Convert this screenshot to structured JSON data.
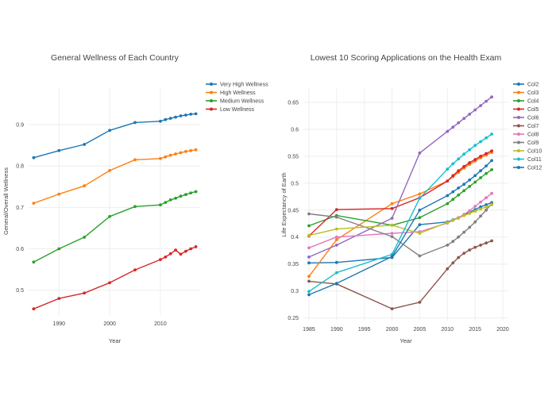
{
  "chart_data": [
    {
      "type": "line",
      "title": "General Wellness of Each Country",
      "xlabel": "Year",
      "ylabel": "General/Overall Wellness",
      "xlim": [
        1984,
        2018
      ],
      "ylim": [
        0.44,
        0.99
      ],
      "xticks": [
        1990,
        2000,
        2010
      ],
      "yticks": [
        0.5,
        0.6,
        0.7,
        0.8,
        0.9
      ],
      "legend_position": "top-right",
      "x": [
        1985,
        1990,
        1995,
        2000,
        2005,
        2010,
        2011,
        2012,
        2013,
        2014,
        2015,
        2016,
        2017
      ],
      "series": [
        {
          "name": "Very High Wellness",
          "color": "#1f77b4",
          "values": [
            0.82,
            0.837,
            0.852,
            0.886,
            0.905,
            0.908,
            0.912,
            0.915,
            0.918,
            0.921,
            0.923,
            0.925,
            0.926
          ]
        },
        {
          "name": "High Wellness",
          "color": "#ff7f0e",
          "values": [
            0.71,
            0.732,
            0.752,
            0.789,
            0.815,
            0.818,
            0.822,
            0.826,
            0.829,
            0.832,
            0.835,
            0.837,
            0.839
          ]
        },
        {
          "name": "Medium Wellness",
          "color": "#2ca02c",
          "values": [
            0.568,
            0.6,
            0.628,
            0.678,
            0.702,
            0.706,
            0.712,
            0.718,
            0.722,
            0.727,
            0.731,
            0.735,
            0.738
          ]
        },
        {
          "name": "Low Wellness",
          "color": "#d62728",
          "values": [
            0.455,
            0.48,
            0.493,
            0.518,
            0.549,
            0.574,
            0.58,
            0.588,
            0.597,
            0.587,
            0.594,
            0.6,
            0.605
          ]
        }
      ]
    },
    {
      "type": "line",
      "title": "Lowest 10 Scoring Applications on the Health Exam",
      "xlabel": "Year",
      "ylabel": "Life Expectancy of Earth",
      "xlim": [
        1984,
        2021
      ],
      "ylim": [
        0.245,
        0.675
      ],
      "xticks": [
        1985,
        1990,
        1995,
        2000,
        2005,
        2010,
        2015,
        2020
      ],
      "yticks": [
        0.25,
        0.3,
        0.35,
        0.4,
        0.45,
        0.5,
        0.55,
        0.6,
        0.65
      ],
      "legend_position": "top-right",
      "x": [
        1985,
        1990,
        2000,
        2005,
        2010,
        2011,
        2012,
        2013,
        2014,
        2015,
        2016,
        2017,
        2018
      ],
      "series": [
        {
          "name": "Col2",
          "color": "#1f77b4",
          "values": [
            0.352,
            0.353,
            0.362,
            0.423,
            0.428,
            0.432,
            0.436,
            0.441,
            0.446,
            0.451,
            0.456,
            0.46,
            0.464
          ]
        },
        {
          "name": "Col3",
          "color": "#ff7f0e",
          "values": [
            0.327,
            0.395,
            0.462,
            0.48,
            0.504,
            0.512,
            0.52,
            0.528,
            0.535,
            0.541,
            0.547,
            0.552,
            0.557
          ]
        },
        {
          "name": "Col4",
          "color": "#2ca02c",
          "values": [
            0.421,
            0.44,
            0.422,
            0.436,
            0.462,
            0.47,
            0.478,
            0.486,
            0.494,
            0.502,
            0.51,
            0.518,
            0.525
          ]
        },
        {
          "name": "Col5",
          "color": "#d62728",
          "values": [
            0.402,
            0.451,
            0.453,
            0.473,
            0.504,
            0.514,
            0.523,
            0.531,
            0.538,
            0.544,
            0.55,
            0.555,
            0.56
          ]
        },
        {
          "name": "Col6",
          "color": "#9467bd",
          "values": [
            0.363,
            0.385,
            0.435,
            0.556,
            0.596,
            0.604,
            0.612,
            0.62,
            0.628,
            0.636,
            0.644,
            0.652,
            0.66
          ]
        },
        {
          "name": "Col7",
          "color": "#8c564b",
          "values": [
            0.318,
            0.313,
            0.267,
            0.279,
            0.341,
            0.352,
            0.362,
            0.37,
            0.376,
            0.381,
            0.385,
            0.389,
            0.393
          ]
        },
        {
          "name": "Col8",
          "color": "#e377c2",
          "values": [
            0.38,
            0.4,
            0.407,
            0.41,
            0.426,
            0.431,
            0.436,
            0.442,
            0.449,
            0.457,
            0.465,
            0.473,
            0.481
          ]
        },
        {
          "name": "Col9",
          "color": "#7f7f7f",
          "values": [
            0.443,
            0.437,
            0.401,
            0.365,
            0.385,
            0.392,
            0.4,
            0.409,
            0.418,
            0.428,
            0.439,
            0.45,
            0.462
          ]
        },
        {
          "name": "Col10",
          "color": "#bcbd22",
          "values": [
            0.403,
            0.415,
            0.422,
            0.407,
            0.427,
            0.431,
            0.435,
            0.44,
            0.444,
            0.448,
            0.452,
            0.456,
            0.46
          ]
        },
        {
          "name": "Col11",
          "color": "#17becf",
          "values": [
            0.299,
            0.334,
            0.368,
            0.472,
            0.526,
            0.536,
            0.545,
            0.554,
            0.562,
            0.57,
            0.577,
            0.584,
            0.591
          ]
        },
        {
          "name": "Col12",
          "color": "#1f77b4",
          "values": [
            0.293,
            0.314,
            0.364,
            0.45,
            0.477,
            0.484,
            0.491,
            0.498,
            0.506,
            0.514,
            0.523,
            0.532,
            0.542
          ]
        }
      ]
    }
  ]
}
